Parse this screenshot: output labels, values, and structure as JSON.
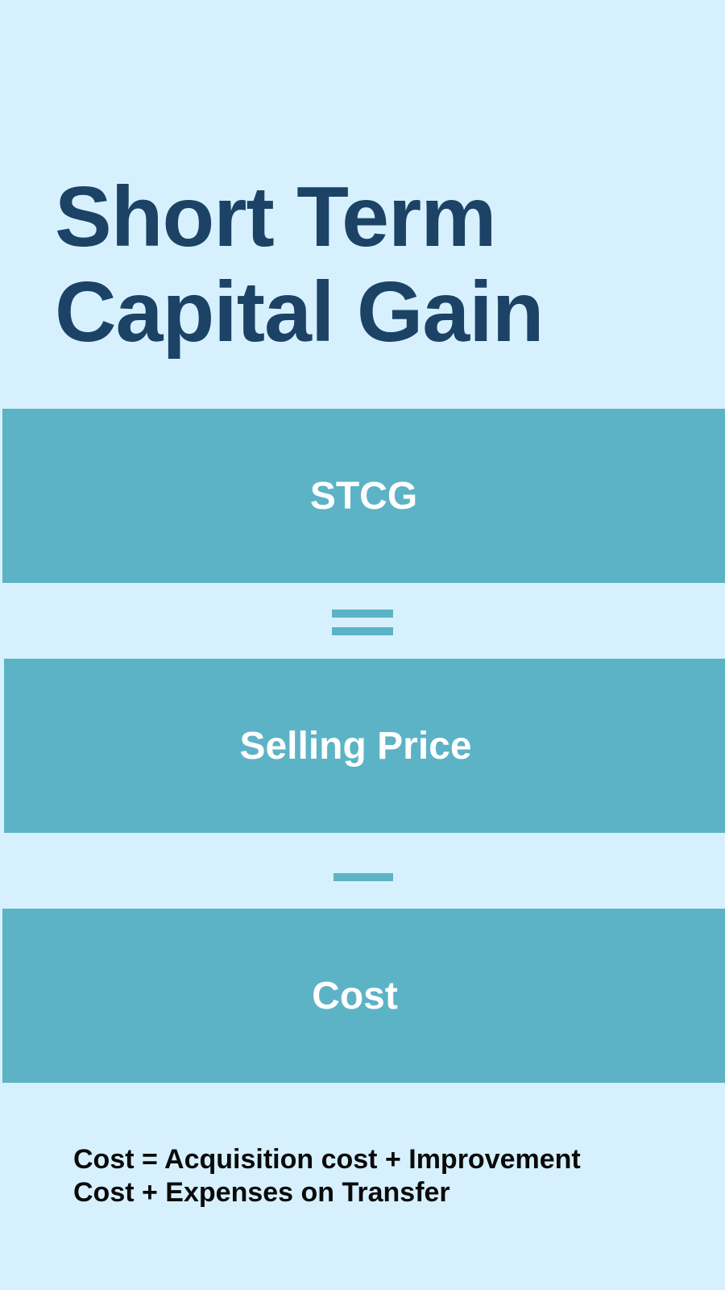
{
  "title": {
    "line1": "Short Term",
    "line2": "Capital Gain"
  },
  "formula": {
    "result": "STCG",
    "operand1": "Selling Price",
    "operand2": "Cost"
  },
  "note": {
    "line1": "Cost = Acquisition cost + Improvement",
    "line2": "Cost + Expenses on Transfer"
  },
  "colors": {
    "background": "#d6f1fd",
    "title": "#1c4266",
    "band": "#5cb3c6",
    "band_text": "#ffffff",
    "note_text": "#0a0a0a"
  }
}
